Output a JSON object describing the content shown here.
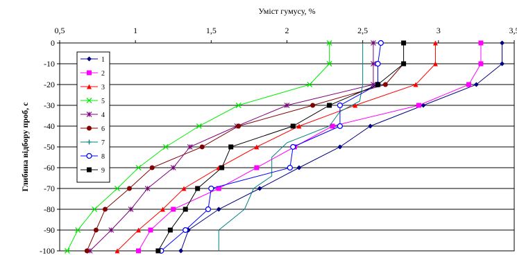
{
  "chart_data": {
    "type": "line",
    "title": "",
    "xlabel": "Уміст гумусу, %",
    "ylabel": "Глибина відбору проб, с",
    "xlim": [
      0.5,
      3.5
    ],
    "ylim": [
      -100,
      0
    ],
    "x_ticks": [
      "0,5",
      "1",
      "1,5",
      "2",
      "2,5",
      "3",
      "3,5"
    ],
    "y_ticks": [
      "0",
      "-10",
      "-20",
      "-30",
      "-40",
      "-50",
      "-60",
      "-70",
      "-80",
      "-90",
      "-100"
    ],
    "x_axis_position": "top",
    "grid": "horizontal",
    "legend_position": "left",
    "series": [
      {
        "name": "1",
        "color": "#000080",
        "marker": "diamond",
        "markers": "all",
        "points": [
          [
            3.42,
            0
          ],
          [
            3.42,
            -10
          ],
          [
            3.25,
            -20
          ],
          [
            2.9,
            -30
          ],
          [
            2.55,
            -40
          ],
          [
            2.35,
            -50
          ],
          [
            2.08,
            -60
          ],
          [
            1.82,
            -70
          ],
          [
            1.55,
            -80
          ],
          [
            1.35,
            -90
          ],
          [
            1.3,
            -100
          ]
        ]
      },
      {
        "name": "2",
        "color": "#ff00ff",
        "marker": "square",
        "markers": "all",
        "points": [
          [
            3.28,
            0
          ],
          [
            3.28,
            -10
          ],
          [
            3.2,
            -20
          ],
          [
            2.87,
            -30
          ],
          [
            2.3,
            -40
          ],
          [
            2.05,
            -50
          ],
          [
            1.8,
            -60
          ],
          [
            1.55,
            -70
          ],
          [
            1.25,
            -80
          ],
          [
            1.1,
            -90
          ],
          [
            1.02,
            -100
          ]
        ]
      },
      {
        "name": "3",
        "color": "#ff0000",
        "marker": "triangle",
        "markers": "all",
        "points": [
          [
            2.98,
            0
          ],
          [
            2.98,
            -10
          ],
          [
            2.85,
            -20
          ],
          [
            2.45,
            -30
          ],
          [
            2.08,
            -40
          ],
          [
            1.8,
            -50
          ],
          [
            1.55,
            -60
          ],
          [
            1.32,
            -70
          ],
          [
            1.18,
            -80
          ],
          [
            1.02,
            -90
          ],
          [
            0.88,
            -100
          ]
        ]
      },
      {
        "name": "5",
        "color": "#00ee00",
        "marker": "x",
        "markers": "all",
        "points": [
          [
            2.28,
            0
          ],
          [
            2.28,
            -10
          ],
          [
            2.15,
            -20
          ],
          [
            1.68,
            -30
          ],
          [
            1.42,
            -40
          ],
          [
            1.2,
            -50
          ],
          [
            1.02,
            -60
          ],
          [
            0.88,
            -70
          ],
          [
            0.73,
            -80
          ],
          [
            0.62,
            -90
          ],
          [
            0.55,
            -100
          ]
        ]
      },
      {
        "name": "4",
        "color": "#800080",
        "marker": "star",
        "markers": "all",
        "points": [
          [
            2.57,
            0
          ],
          [
            2.57,
            -10
          ],
          [
            2.57,
            -20
          ],
          [
            2.0,
            -30
          ],
          [
            1.67,
            -40
          ],
          [
            1.36,
            -50
          ],
          [
            1.25,
            -60
          ],
          [
            1.08,
            -70
          ],
          [
            0.97,
            -80
          ],
          [
            0.84,
            -90
          ],
          [
            0.7,
            -100
          ]
        ]
      },
      {
        "name": "6",
        "color": "#800000",
        "marker": "circle",
        "markers": "all",
        "points": [
          [
            2.77,
            -10
          ],
          [
            2.65,
            -20
          ],
          [
            2.17,
            -30
          ],
          [
            1.68,
            -40
          ],
          [
            1.44,
            -50
          ],
          [
            1.11,
            -60
          ],
          [
            0.96,
            -70
          ],
          [
            0.8,
            -80
          ],
          [
            0.74,
            -90
          ],
          [
            0.68,
            -100
          ]
        ]
      },
      {
        "name": "7",
        "color": "#008080",
        "marker": "plus",
        "markers": "none",
        "points": [
          [
            2.5,
            0
          ],
          [
            2.5,
            -20
          ],
          [
            2.48,
            -28
          ],
          [
            2.35,
            -33
          ],
          [
            2.28,
            -40
          ],
          [
            2.0,
            -48
          ],
          [
            1.9,
            -55
          ],
          [
            1.9,
            -64
          ],
          [
            1.78,
            -70
          ],
          [
            1.72,
            -80
          ],
          [
            1.55,
            -90
          ],
          [
            1.55,
            -100
          ]
        ]
      },
      {
        "name": "8",
        "color": "#0000ff",
        "marker": "circle-open",
        "markers": "all",
        "points": [
          [
            2.62,
            0
          ],
          [
            2.6,
            -10
          ],
          [
            2.6,
            -20
          ],
          [
            2.35,
            -30
          ],
          [
            2.35,
            -40
          ],
          [
            2.04,
            -50
          ],
          [
            2.02,
            -60
          ],
          [
            1.5,
            -70
          ],
          [
            1.48,
            -80
          ],
          [
            1.33,
            -90
          ],
          [
            1.17,
            -100
          ]
        ]
      },
      {
        "name": "9",
        "color": "#000000",
        "marker": "square",
        "markers": "all",
        "points": [
          [
            2.77,
            0
          ],
          [
            2.77,
            -10
          ],
          [
            2.6,
            -20
          ],
          [
            2.28,
            -30
          ],
          [
            2.04,
            -40
          ],
          [
            1.63,
            -50
          ],
          [
            1.57,
            -60
          ],
          [
            1.41,
            -70
          ],
          [
            1.33,
            -80
          ],
          [
            1.23,
            -90
          ],
          [
            1.15,
            -100
          ]
        ]
      }
    ]
  }
}
